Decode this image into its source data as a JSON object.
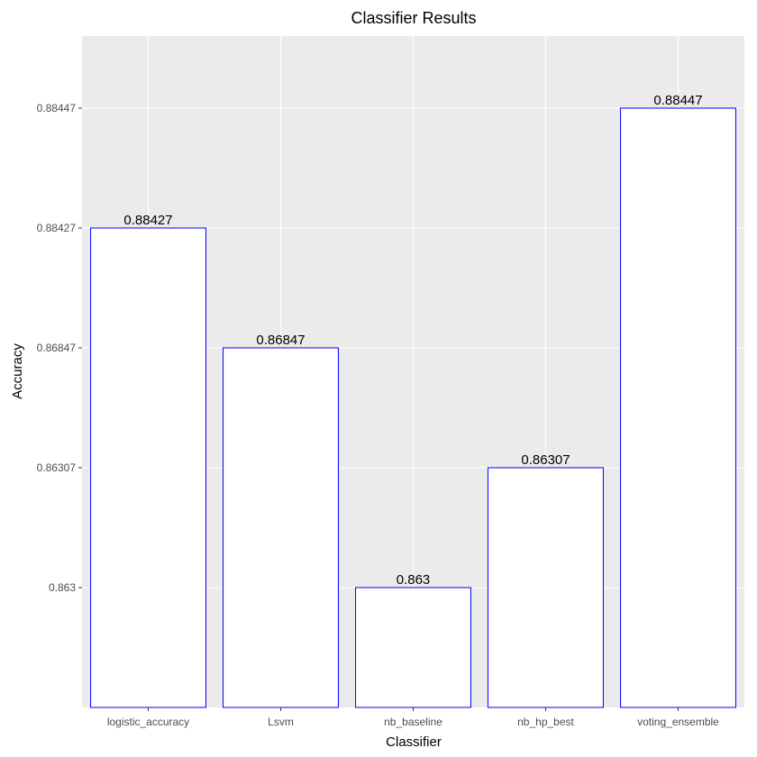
{
  "chart_data": {
    "type": "bar",
    "title": "Classifier Results",
    "xlabel": "Classifier",
    "ylabel": "Accuracy",
    "categories": [
      "logistic_accuracy",
      "Lsvm",
      "nb_baseline",
      "nb_hp_best",
      "voting_ensemble"
    ],
    "values": [
      0.88427,
      0.86847,
      0.863,
      0.86307,
      0.88447
    ],
    "value_labels": [
      "0.88427",
      "0.86847",
      "0.863",
      "0.86307",
      "0.88447"
    ],
    "y_tick_labels": [
      "0.863",
      "0.86307",
      "0.86847",
      "0.88427",
      "0.88447"
    ],
    "y_scale": "discrete (values treated as ordered levels)",
    "grid": true,
    "legend": "none",
    "colors": {
      "panel_background": "#ebebeb",
      "grid": "#ffffff",
      "bar_fill": "#ffffff",
      "bar_outline": "#0000ff"
    }
  }
}
